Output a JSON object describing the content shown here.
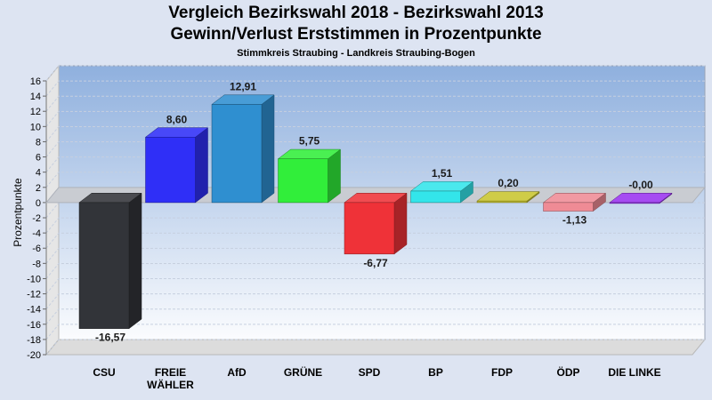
{
  "header": {
    "title_line1": "Vergleich Bezirkswahl 2018 - Bezirkswahl 2013",
    "title_line2": "Gewinn/Verlust Erststimmen in Prozentpunkte",
    "subtitle": "Stimmkreis Straubing - Landkreis Straubing-Bogen"
  },
  "chart_data": {
    "type": "bar",
    "title": "Vergleich Bezirkswahl 2018 - Bezirkswahl 2013 / Gewinn/Verlust Erststimmen in Prozentpunkte",
    "subtitle": "Stimmkreis Straubing - Landkreis Straubing-Bogen",
    "ylabel": "Prozentpunkte",
    "xlabel": "",
    "ylim": [
      -20,
      16
    ],
    "yticks": [
      16,
      14,
      12,
      10,
      8,
      6,
      4,
      2,
      0,
      -2,
      -4,
      -6,
      -8,
      -10,
      -12,
      -14,
      -16,
      -18,
      -20
    ],
    "grid": true,
    "categories": [
      "CSU",
      "FREIE WÄHLER",
      "AfD",
      "GRÜNE",
      "SPD",
      "BP",
      "FDP",
      "ÖDP",
      "DIE LINKE"
    ],
    "category_lines": [
      [
        "CSU"
      ],
      [
        "FREIE",
        "WÄHLER"
      ],
      [
        "AfD"
      ],
      [
        "GRÜNE"
      ],
      [
        "SPD"
      ],
      [
        "BP"
      ],
      [
        "FDP"
      ],
      [
        "ÖDP"
      ],
      [
        "DIE LINKE"
      ]
    ],
    "values": [
      -16.57,
      8.6,
      12.91,
      5.75,
      -6.77,
      1.51,
      0.2,
      -1.13,
      -0.0
    ],
    "value_labels": [
      "-16,57",
      "8,60",
      "12,91",
      "5,75",
      "-6,77",
      "1,51",
      "0,20",
      "-1,13",
      "-0,00"
    ],
    "colors": [
      "#323439",
      "#2f2ff7",
      "#2f8fd0",
      "#31ee3a",
      "#ef3238",
      "#33e5ea",
      "#c8c52e",
      "#ef8b95",
      "#9a32f0"
    ]
  }
}
